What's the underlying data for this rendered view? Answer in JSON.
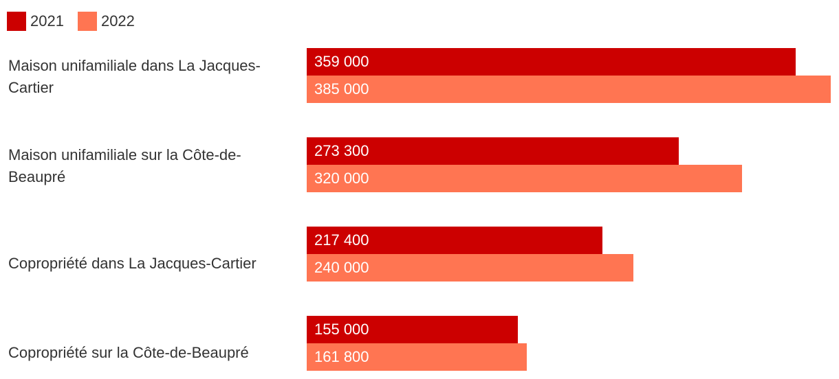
{
  "chart_data": {
    "type": "bar",
    "orientation": "horizontal",
    "categories": [
      "Maison unifamiliale dans La Jacques-Cartier",
      "Maison unifamiliale sur la Côte-de-Beaupré",
      "Copropriété dans La Jacques-Cartier",
      "Copropriété sur la Côte-de-Beaupré"
    ],
    "series": [
      {
        "name": "2021",
        "color": "#cc0000",
        "values": [
          359000,
          273300,
          217400,
          155000
        ],
        "labels": [
          "359 000",
          "273 300",
          "217 400",
          "155 000"
        ]
      },
      {
        "name": "2022",
        "color": "#ff7552",
        "values": [
          385000,
          320000,
          240000,
          161800
        ],
        "labels": [
          "385 000",
          "320 000",
          "240 000",
          "161 800"
        ]
      }
    ],
    "xlim": [
      0,
      385000
    ],
    "grid": false,
    "legend_position": "top-left"
  }
}
